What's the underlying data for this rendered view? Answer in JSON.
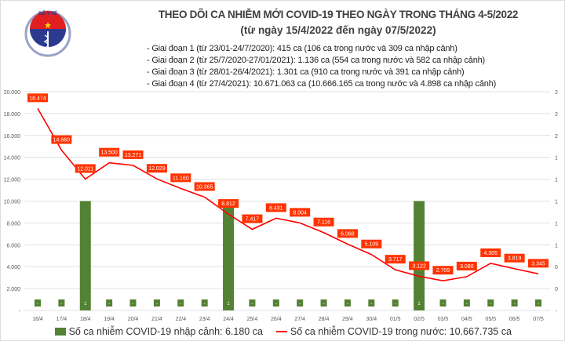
{
  "header": {
    "title": "THEO DÕI CA NHIỄM MỚI COVID-19 THEO NGÀY TRONG THÁNG 4-5/2022",
    "subtitle": "(từ ngày 15/4/2022 đến ngày 07/5/2022)",
    "notes": [
      "- Giai đoạn 1 (từ 23/01-24/7/2020): 415 ca (106 ca trong nước và 309 ca nhập cảnh)",
      "- Giai đoạn 2 (từ 25/7/2020-27/01/2021): 1.136 ca (554 ca trong nước và 582 ca nhập cảnh)",
      "- Giai đoạn 3 (từ 28/01-26/4/2021): 1.301 ca (910 ca trong nước và 391 ca nhập cảnh)",
      "- Giai đoạn 4 (từ 27/4/2021): 10.671.063 ca (10.666.165 ca trong nước và 4.898 ca nhập cảnh)"
    ],
    "logo_text": "BỘ Y TẾ - MINISTRY OF HEALTH"
  },
  "chart_data": {
    "type": "bar+line",
    "categories": [
      "16/4",
      "17/4",
      "18/4",
      "19/4",
      "20/4",
      "21/4",
      "22/4",
      "23/4",
      "24/4",
      "25/4",
      "26/4",
      "27/4",
      "28/4",
      "29/4",
      "30/4",
      "01/5",
      "02/5",
      "03/5",
      "04/5",
      "05/5",
      "06/5",
      "07/5"
    ],
    "series": [
      {
        "name": "Số ca nhiễm COVID-19 nhập cảnh: 6.180 ca",
        "type": "bar",
        "axis": "right",
        "color": "#548235",
        "values": [
          0,
          0,
          1,
          0,
          0,
          0,
          0,
          0,
          1,
          0,
          0,
          0,
          0,
          0,
          0,
          0,
          1,
          0,
          0,
          0,
          0,
          0
        ],
        "labels": [
          "-",
          "-",
          "1",
          "-",
          "-",
          "-",
          "-",
          "-",
          "1",
          "-",
          "-",
          "-",
          "-",
          "-",
          "-",
          "-",
          "1",
          "-",
          "-",
          "-",
          "-",
          "-"
        ]
      },
      {
        "name": "Số ca nhiễm COVID-19 trong nước: 10.667.735 ca",
        "type": "line",
        "axis": "left",
        "color": "#ff0000",
        "values": [
          18474,
          14660,
          12011,
          13500,
          13271,
          12029,
          11160,
          10365,
          8812,
          7417,
          8431,
          8004,
          7116,
          6068,
          5109,
          3717,
          3122,
          2709,
          3088,
          4305,
          3819,
          3345
        ],
        "labels": [
          "18.474",
          "14.660",
          "12.011",
          "13.500",
          "13.271",
          "12.029",
          "11.160",
          "10.365",
          "8.812",
          "7.417",
          "8.431",
          "8.004",
          "7.116",
          "6.068",
          "5.109",
          "3.717",
          "3.122",
          "2.709",
          "3.088",
          "4.305",
          "3.819",
          "3.345"
        ]
      }
    ],
    "ylim": [
      0,
      20000
    ],
    "yticks": [
      "-",
      "2.000",
      "4.000",
      "6.000",
      "8.000",
      "10.000",
      "12.000",
      "14.000",
      "16.000",
      "18.000",
      "20.000"
    ],
    "y2lim": [
      0,
      2
    ],
    "y2ticks": [
      "-",
      "0",
      "0",
      "1",
      "1",
      "1",
      "1",
      "1",
      "2",
      "2",
      "2"
    ],
    "grid": true,
    "legend": "bottom",
    "label_bg_color": "#ff3300"
  }
}
